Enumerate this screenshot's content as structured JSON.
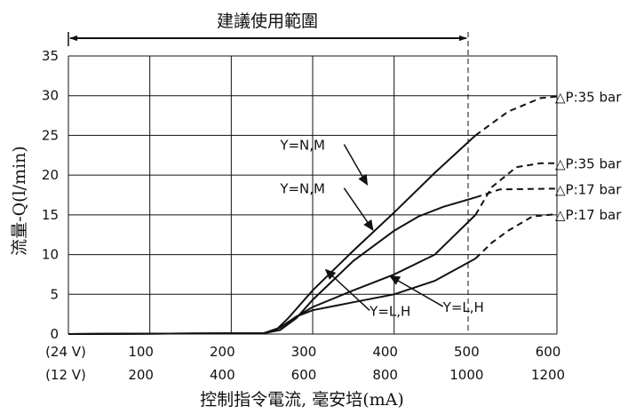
{
  "chart_data": {
    "type": "line",
    "title": "",
    "range_label": "建議使用範圍",
    "xlabel": "控制指令電流, 毫安培(mA)",
    "ylabel": "流量-Q(l/min)",
    "xlim": [
      0,
      600
    ],
    "ylim": [
      0,
      35
    ],
    "yticks": [
      0,
      5,
      10,
      15,
      20,
      25,
      30,
      35
    ],
    "xtick_rows": [
      {
        "prefix": "(24 V)",
        "values": [
          "100",
          "200",
          "300",
          "400",
          "500",
          "600"
        ]
      },
      {
        "prefix": "(12 V)",
        "values": [
          "200",
          "400",
          "600",
          "800",
          "1000",
          "1200"
        ]
      }
    ],
    "x_positions": [
      100,
      200,
      300,
      400,
      500,
      600
    ],
    "recommended_range": [
      0,
      500
    ],
    "grid": true,
    "series": [
      {
        "name": "Y=N,M",
        "end_label": "△P:35 bar",
        "values": [
          [
            0,
            0
          ],
          [
            240,
            0.1
          ],
          [
            255,
            0.5
          ],
          [
            270,
            2
          ],
          [
            300,
            5.5
          ],
          [
            350,
            10.5
          ],
          [
            400,
            15.3
          ],
          [
            450,
            20.3
          ],
          [
            500,
            25
          ]
        ],
        "extension": [
          [
            500,
            25
          ],
          [
            540,
            28
          ],
          [
            580,
            29.7
          ],
          [
            600,
            29.9
          ]
        ]
      },
      {
        "name": "Y=L,H",
        "end_label": "△P:35 bar",
        "values": [
          [
            0,
            0
          ],
          [
            240,
            0.1
          ],
          [
            260,
            0.8
          ],
          [
            280,
            2.2
          ],
          [
            300,
            3.4
          ],
          [
            350,
            5.5
          ],
          [
            400,
            7.5
          ],
          [
            450,
            10
          ],
          [
            480,
            13
          ],
          [
            500,
            15
          ]
        ],
        "extension": [
          [
            500,
            15
          ],
          [
            520,
            18.5
          ],
          [
            550,
            21
          ],
          [
            580,
            21.5
          ],
          [
            600,
            21.5
          ]
        ]
      },
      {
        "name": "Y=N,M",
        "end_label": "△P:17 bar",
        "values": [
          [
            0,
            0
          ],
          [
            240,
            0.1
          ],
          [
            260,
            0.5
          ],
          [
            280,
            2
          ],
          [
            300,
            4.3
          ],
          [
            350,
            9.2
          ],
          [
            400,
            13
          ],
          [
            430,
            14.8
          ],
          [
            460,
            16
          ],
          [
            500,
            17.2
          ]
        ],
        "extension": [
          [
            500,
            17.2
          ],
          [
            530,
            18.2
          ],
          [
            600,
            18.3
          ]
        ]
      },
      {
        "name": "Y=L,H",
        "end_label": "△P:17 bar",
        "values": [
          [
            0,
            0
          ],
          [
            240,
            0.1
          ],
          [
            260,
            0.8
          ],
          [
            280,
            2.2
          ],
          [
            300,
            3
          ],
          [
            350,
            4
          ],
          [
            400,
            5
          ],
          [
            450,
            6.7
          ],
          [
            500,
            9.5
          ]
        ],
        "extension": [
          [
            500,
            9.5
          ],
          [
            520,
            11.5
          ],
          [
            540,
            13
          ],
          [
            570,
            14.8
          ],
          [
            600,
            15.1
          ]
        ]
      }
    ],
    "callouts": [
      {
        "label": "Y=N,M",
        "text_at": [
          260,
          23.2
        ],
        "arrow_to": [
          367,
          18.8
        ]
      },
      {
        "label": "Y=N,M",
        "text_at": [
          260,
          17.7
        ],
        "arrow_to": [
          374,
          13.1
        ]
      },
      {
        "label": "Y=L,H",
        "text_at": [
          370,
          2.3
        ],
        "arrow_to": [
          316,
          8.1
        ]
      },
      {
        "label": "Y=L,H",
        "text_at": [
          460,
          2.8
        ],
        "arrow_to": [
          395,
          7.3
        ]
      }
    ]
  }
}
